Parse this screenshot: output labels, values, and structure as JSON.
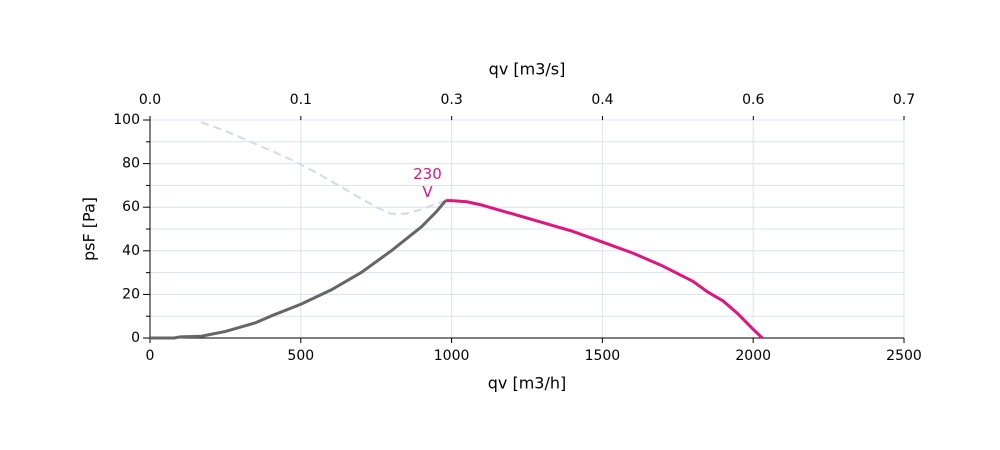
{
  "chart_data": {
    "type": "line",
    "xlabel": "qv [m3/h]",
    "x2label": "qv [m3/s]",
    "ylabel": "psF [Pa]",
    "xlim": [
      0,
      2500
    ],
    "xticks": [
      0,
      500,
      1000,
      1500,
      2000,
      2500
    ],
    "x2lim": [
      0,
      0.6944
    ],
    "x2ticks": [
      {
        "value": 0,
        "label": "0.0"
      },
      {
        "value": 0.1389,
        "label": "0.1"
      },
      {
        "value": 0.2778,
        "label": "0.3"
      },
      {
        "value": 0.4167,
        "label": "0.4"
      },
      {
        "value": 0.5556,
        "label": "0.6"
      },
      {
        "value": 0.6944,
        "label": "0.7"
      }
    ],
    "ylim": [
      0,
      100
    ],
    "yticks": [
      0,
      20,
      40,
      60,
      80,
      100
    ],
    "yminor_ticks": [
      10,
      30,
      50,
      70,
      90
    ],
    "grid": true,
    "annotation": {
      "lines": [
        "230",
        "V"
      ],
      "x": 920,
      "y": 75,
      "color": "#e0147f"
    },
    "series": [
      {
        "color": "#d3dbe6",
        "line_style": "dashed",
        "x": [
          170,
          250,
          350,
          450,
          550,
          650,
          750,
          800,
          850,
          900,
          960,
          980
        ],
        "values": [
          99,
          95,
          89,
          83,
          76,
          68,
          60,
          57,
          57,
          59,
          62,
          63
        ]
      },
      {
        "color": "#666666",
        "line_style": "solid",
        "x": [
          0,
          80,
          100,
          170,
          250,
          350,
          400,
          500,
          600,
          700,
          800,
          900,
          950,
          980
        ],
        "values": [
          0,
          0,
          0.5,
          0.8,
          3,
          7,
          10,
          15.5,
          22,
          30,
          40,
          51,
          58,
          63
        ]
      },
      {
        "color": "#e0147f",
        "line_style": "solid",
        "x": [
          980,
          1000,
          1050,
          1100,
          1200,
          1300,
          1400,
          1500,
          1600,
          1700,
          1800,
          1850,
          1900,
          1950,
          2000,
          2030
        ],
        "values": [
          63,
          63,
          62.5,
          61,
          57,
          53,
          49,
          44,
          39,
          33,
          26,
          21,
          17,
          11,
          4,
          0
        ]
      }
    ]
  }
}
